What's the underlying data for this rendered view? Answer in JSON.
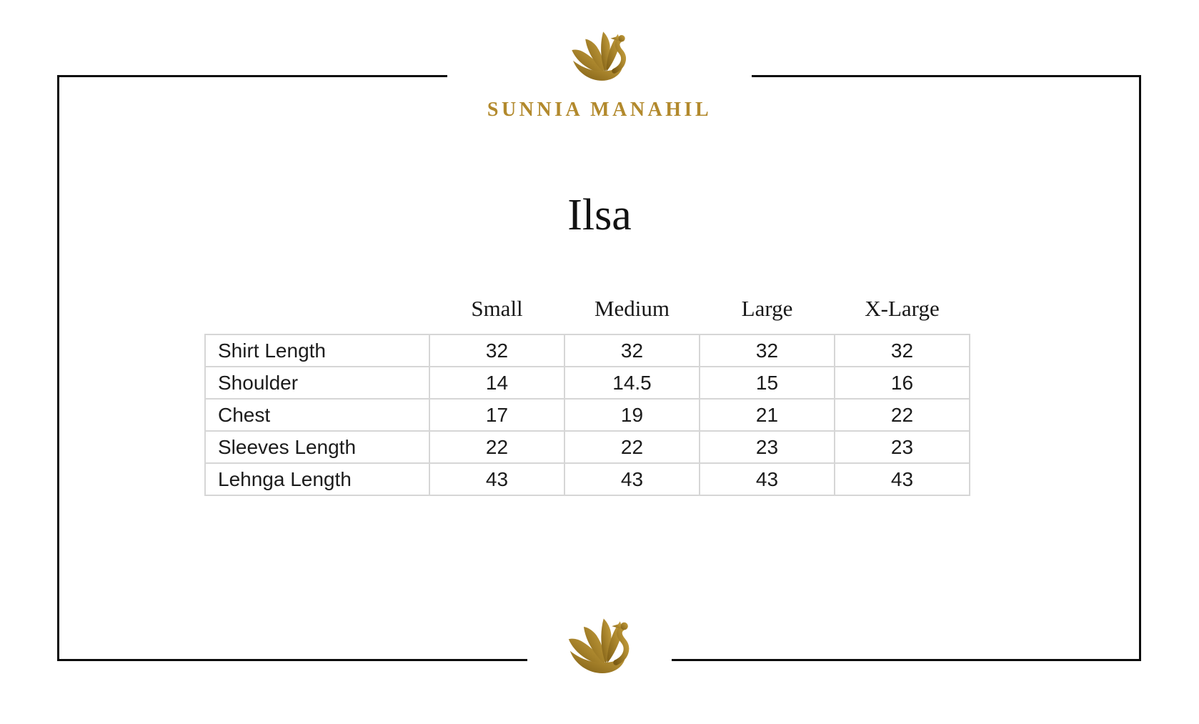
{
  "brand": {
    "name": "SUNNIA MANAHIL",
    "logo": "gold-swan",
    "gold_color": "#b2892c"
  },
  "page": {
    "title": "Ilsa",
    "background": "#ffffff",
    "frame_color": "#0c0c0c"
  },
  "size_chart": {
    "grid_color": "#d6d6d6",
    "columns": [
      "Small",
      "Medium",
      "Large",
      "X-Large"
    ],
    "rows": [
      {
        "label": "Shirt Length",
        "values": [
          "32",
          "32",
          "32",
          "32"
        ]
      },
      {
        "label": "Shoulder",
        "values": [
          "14",
          "14.5",
          "15",
          "16"
        ]
      },
      {
        "label": "Chest",
        "values": [
          "17",
          "19",
          "21",
          "22"
        ]
      },
      {
        "label": "Sleeves Length",
        "values": [
          "22",
          "22",
          "23",
          "23"
        ]
      },
      {
        "label": "Lehnga Length",
        "values": [
          "43",
          "43",
          "43",
          "43"
        ]
      }
    ]
  },
  "chart_data": {
    "type": "table",
    "title": "Ilsa",
    "columns": [
      "Small",
      "Medium",
      "Large",
      "X-Large"
    ],
    "row_labels": [
      "Shirt Length",
      "Shoulder",
      "Chest",
      "Sleeves Length",
      "Lehnga Length"
    ],
    "values": [
      [
        32,
        32,
        32,
        32
      ],
      [
        14,
        14.5,
        15,
        16
      ],
      [
        17,
        19,
        21,
        22
      ],
      [
        22,
        22,
        23,
        23
      ],
      [
        43,
        43,
        43,
        43
      ]
    ]
  }
}
